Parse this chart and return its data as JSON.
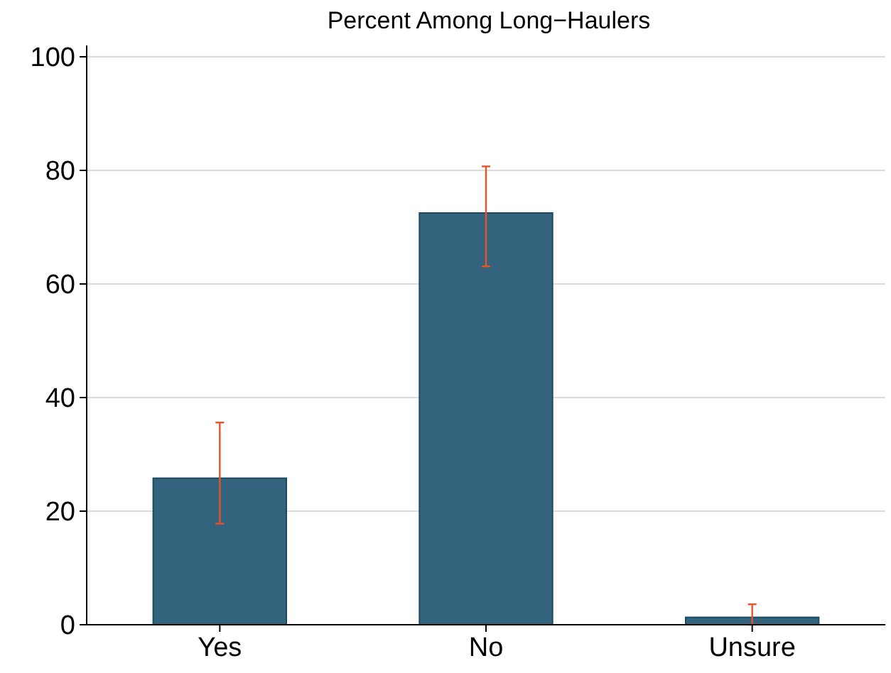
{
  "chart_data": {
    "type": "bar",
    "title": "Percent Among Long−Haulers",
    "categories": [
      "Yes",
      "No",
      "Unsure"
    ],
    "series": [
      {
        "color": "#33637d",
        "values": [
          25.8,
          72.5,
          1.3
        ],
        "errors": [
          [
            17.8,
            35.6
          ],
          [
            63.1,
            80.7
          ],
          [
            0,
            3.6
          ]
        ]
      }
    ],
    "ylim": [
      0,
      102
    ],
    "yticks": [
      0,
      20,
      40,
      60,
      80,
      100
    ],
    "grid": "y"
  }
}
